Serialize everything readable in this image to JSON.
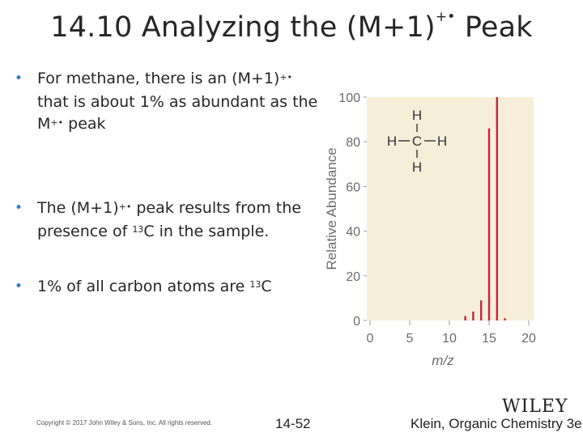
{
  "slide": {
    "title_main": "14.10 Analyzing the (M+1)",
    "title_sup": "+•",
    "title_end": " Peak",
    "bullets": [
      {
        "pre": "For methane, there is an (M+1)",
        "sup": "+•",
        "post": "that is about 1% as abundant as the",
        "line3_pre": "M",
        "line3_sup": "+•",
        "line3_post": " peak"
      },
      {
        "pre": "The (M+1)",
        "sup": "+•",
        "post": " peak results from the",
        "line2_pre": "presence of ",
        "line2_sup": "13",
        "line2_post": "C in the sample."
      },
      {
        "pre": "1% of all carbon atoms are ",
        "sup": "13",
        "post": "C"
      }
    ],
    "copyright": "Copyright © 2017 John Wiley & Sons, Inc. All rights reserved.",
    "page_number": "14-52",
    "credit": "Klein, Organic Chemistry 3e",
    "logo": "WILEY"
  },
  "chart_data": {
    "type": "bar",
    "xlabel": "m/z",
    "ylabel": "Relative Abundance",
    "xlim": [
      0,
      20
    ],
    "ylim": [
      0,
      100
    ],
    "xticks": [
      0,
      5,
      10,
      15,
      20
    ],
    "yticks": [
      0,
      20,
      40,
      60,
      80,
      100
    ],
    "x": [
      12,
      13,
      14,
      15,
      16,
      17
    ],
    "values": [
      2,
      4,
      9,
      86,
      100,
      1
    ],
    "bar_color": "#c0283a",
    "plot_background": "#f7eed8",
    "structure": {
      "top": "H",
      "left": "H",
      "center": "C",
      "right": "H",
      "bottom": "H"
    }
  }
}
